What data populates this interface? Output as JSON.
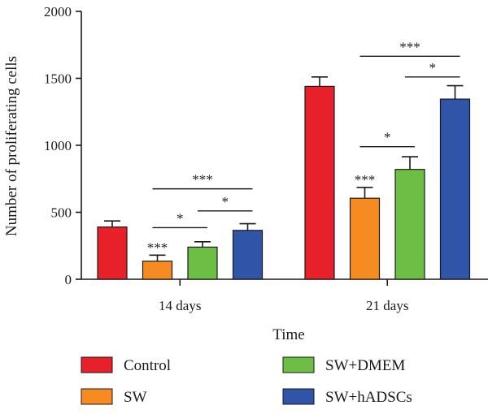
{
  "chart_data": {
    "type": "bar",
    "xlabel": "Time",
    "ylabel": "Number of proliferating cells",
    "ylim": [
      0,
      2000
    ],
    "yticks": [
      0,
      500,
      1000,
      1500,
      2000
    ],
    "categories": [
      "14 days",
      "21 days"
    ],
    "series": [
      {
        "name": "Control",
        "color": "#e8202a",
        "values": [
          390,
          1440
        ],
        "errors": [
          45,
          70
        ]
      },
      {
        "name": "SW",
        "color": "#f58b21",
        "values": [
          135,
          605
        ],
        "errors": [
          45,
          80
        ]
      },
      {
        "name": "SW+DMEM",
        "color": "#6dbe45",
        "values": [
          240,
          820
        ],
        "errors": [
          40,
          95
        ]
      },
      {
        "name": "SW+hADSCs",
        "color": "#2f54a8",
        "values": [
          365,
          1345
        ],
        "errors": [
          50,
          100
        ]
      }
    ],
    "significance": [
      {
        "category": 0,
        "series": 1,
        "label": "***",
        "type": "above-bar"
      },
      {
        "category": 0,
        "from": 1,
        "to": 2,
        "label": "*",
        "y": 385
      },
      {
        "category": 0,
        "from": 2,
        "to": 3,
        "label": "*",
        "y": 510
      },
      {
        "category": 0,
        "from": 1,
        "to": 3,
        "label": "***",
        "y": 675
      },
      {
        "category": 1,
        "series": 1,
        "label": "***",
        "type": "above-bar"
      },
      {
        "category": 1,
        "from": 1,
        "to": 2,
        "label": "*",
        "y": 990
      },
      {
        "category": 1,
        "from": 2,
        "to": 3,
        "label": "*",
        "y": 1510
      },
      {
        "category": 1,
        "from": 1,
        "to": 3,
        "label": "***",
        "y": 1665
      }
    ],
    "legend_position": "bottom",
    "grid": false
  }
}
